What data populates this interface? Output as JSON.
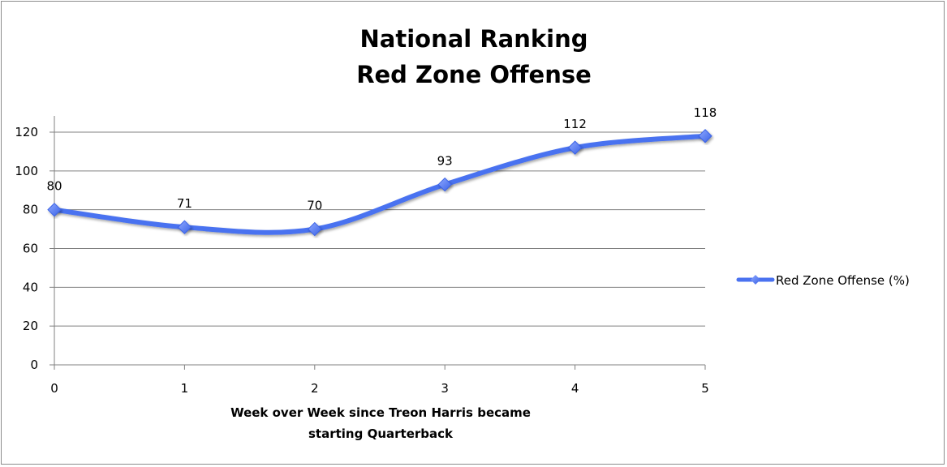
{
  "chart_data": {
    "type": "line",
    "title": [
      "National Ranking",
      "Red Zone Offense"
    ],
    "x": [
      0,
      1,
      2,
      3,
      4,
      5
    ],
    "series": [
      {
        "name": "Red Zone Offense (%)",
        "values": [
          80,
          71,
          70,
          93,
          112,
          118
        ]
      }
    ],
    "xlabel": [
      "Week over Week since Treon Harris became",
      "starting Quarterback"
    ],
    "ylabel": "",
    "xlim": [
      0,
      5
    ],
    "ylim": [
      0,
      120
    ],
    "yticks": [
      0,
      20,
      40,
      60,
      80,
      100,
      120
    ],
    "xticks": [
      0,
      1,
      2,
      3,
      4,
      5
    ],
    "grid": true,
    "smooth": true,
    "legend_position": "right",
    "series_color": "#4a72f0",
    "marker": "diamond"
  }
}
